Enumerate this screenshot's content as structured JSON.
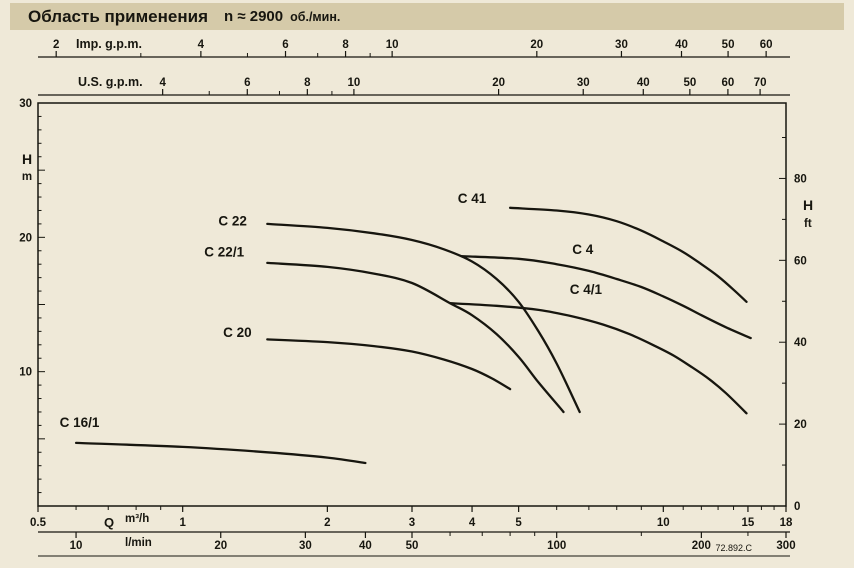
{
  "header": {
    "title": "Область применения",
    "speed": "n ≈ 2900",
    "speed_unit": "об./мин."
  },
  "footer": {
    "doc_ref": "72.892.C"
  },
  "colors": {
    "page_bg": "#EFE9D8",
    "header_bg": "#D5CAA9",
    "ink": "#17160F"
  },
  "chart_data": {
    "type": "line",
    "title": "Область применения n ≈ 2900 об./мин.",
    "x_scale": "log",
    "x_unit": "m³/h",
    "x_range": [
      0.5,
      18
    ],
    "y_unit": "m",
    "y_range": [
      0,
      30
    ],
    "grid": false,
    "axes": {
      "imp_gpm": {
        "title": "Imp. g.p.m.",
        "factor_to_m3h": 0.272765,
        "major": [
          2,
          4,
          6,
          8,
          10,
          20,
          30,
          40,
          50,
          60
        ],
        "minor": [
          3,
          5,
          7,
          9
        ]
      },
      "us_gpm": {
        "title": "U.S. g.p.m.",
        "factor_to_m3h": 0.227125,
        "major": [
          4,
          6,
          8,
          10,
          20,
          30,
          40,
          50,
          60,
          70
        ],
        "minor": [
          5,
          7,
          9
        ]
      },
      "m3h": {
        "title_q": "Q",
        "unit_top": "m³/h",
        "unit_bottom": "l/min",
        "major": [
          0.5,
          1,
          2,
          3,
          4,
          5,
          10,
          15,
          18
        ],
        "minor": [
          0.6,
          0.7,
          0.8,
          0.9,
          6,
          7,
          8,
          9,
          11,
          12,
          13,
          14,
          16,
          17
        ]
      },
      "lmin": {
        "factor_to_m3h": 0.06,
        "major": [
          10,
          20,
          30,
          40,
          50,
          100,
          200,
          300
        ],
        "minor": [
          60,
          70,
          80,
          90,
          150,
          250
        ]
      },
      "left": {
        "title": "H",
        "unit": "m",
        "major": [
          10,
          20,
          30
        ]
      },
      "right": {
        "title": "H",
        "unit": "ft",
        "factor_to_m": 0.3048,
        "major": [
          0,
          20,
          40,
          60,
          80
        ]
      }
    },
    "series": [
      {
        "name": "C 41",
        "label_pos": {
          "q": 4.0,
          "h": 22.9
        },
        "points": [
          [
            4.8,
            22.2
          ],
          [
            6,
            22.0
          ],
          [
            7,
            21.7
          ],
          [
            8,
            21.2
          ],
          [
            9,
            20.5
          ],
          [
            10,
            19.7
          ],
          [
            11,
            18.9
          ],
          [
            12,
            18.0
          ],
          [
            13,
            17.1
          ],
          [
            14,
            16.1
          ],
          [
            14.9,
            15.2
          ]
        ]
      },
      {
        "name": "C 4",
        "label_pos": {
          "q": 6.8,
          "h": 19.1
        },
        "points": [
          [
            3.8,
            18.6
          ],
          [
            5,
            18.4
          ],
          [
            6,
            18.0
          ],
          [
            7,
            17.5
          ],
          [
            8,
            16.9
          ],
          [
            9,
            16.3
          ],
          [
            10,
            15.6
          ],
          [
            11,
            14.9
          ],
          [
            12,
            14.2
          ],
          [
            13.5,
            13.3
          ],
          [
            15.2,
            12.5
          ]
        ]
      },
      {
        "name": "C 4/1",
        "label_pos": {
          "q": 6.9,
          "h": 16.1
        },
        "points": [
          [
            3.6,
            15.1
          ],
          [
            4.5,
            14.9
          ],
          [
            5.5,
            14.6
          ],
          [
            6.5,
            14.1
          ],
          [
            7.5,
            13.5
          ],
          [
            8.5,
            12.8
          ],
          [
            9.5,
            12.0
          ],
          [
            10.5,
            11.2
          ],
          [
            11.5,
            10.3
          ],
          [
            12.5,
            9.4
          ],
          [
            13.5,
            8.4
          ],
          [
            14.9,
            6.9
          ]
        ]
      },
      {
        "name": "C 22",
        "label_pos": {
          "q": 1.27,
          "h": 21.2
        },
        "points": [
          [
            1.5,
            21.0
          ],
          [
            2,
            20.7
          ],
          [
            2.5,
            20.3
          ],
          [
            3,
            19.8
          ],
          [
            3.5,
            19.1
          ],
          [
            4,
            18.2
          ],
          [
            4.5,
            16.9
          ],
          [
            5,
            15.2
          ],
          [
            5.5,
            13.0
          ],
          [
            6,
            10.6
          ],
          [
            6.5,
            8.0
          ],
          [
            6.7,
            7.0
          ]
        ]
      },
      {
        "name": "C 22/1",
        "label_pos": {
          "q": 1.22,
          "h": 18.9
        },
        "points": [
          [
            1.5,
            18.1
          ],
          [
            2,
            17.8
          ],
          [
            2.5,
            17.3
          ],
          [
            3,
            16.6
          ],
          [
            3.6,
            15.1
          ],
          [
            4,
            14.2
          ],
          [
            4.5,
            12.8
          ],
          [
            5,
            11.1
          ],
          [
            5.5,
            9.2
          ],
          [
            6,
            7.6
          ],
          [
            6.2,
            7.0
          ]
        ]
      },
      {
        "name": "C 20",
        "label_pos": {
          "q": 1.3,
          "h": 12.9
        },
        "points": [
          [
            1.5,
            12.4
          ],
          [
            2,
            12.2
          ],
          [
            2.5,
            11.9
          ],
          [
            3,
            11.5
          ],
          [
            3.5,
            10.9
          ],
          [
            4,
            10.2
          ],
          [
            4.4,
            9.5
          ],
          [
            4.8,
            8.7
          ]
        ]
      },
      {
        "name": "C 16/1",
        "label_pos": {
          "q": 0.61,
          "h": 6.2
        },
        "points": [
          [
            0.6,
            4.7
          ],
          [
            1.0,
            4.4
          ],
          [
            1.5,
            4.0
          ],
          [
            2.0,
            3.6
          ],
          [
            2.4,
            3.2
          ]
        ]
      }
    ]
  }
}
